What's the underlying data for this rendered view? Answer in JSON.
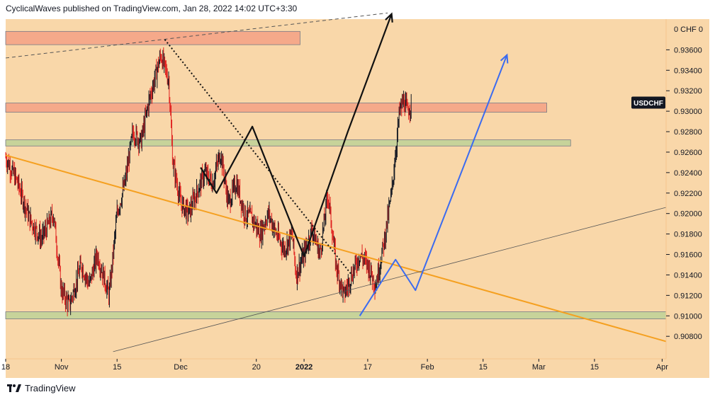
{
  "header": {
    "publisher_text": "CyclicalWaves published on TradingView.com, Jan 28, 2022 14:02 UTC+3:30"
  },
  "footer": {
    "brand": "TradingView",
    "logo_icon": "tradingview-logo-icon"
  },
  "colors": {
    "background": "#f9d7a9",
    "candle_up": "#131722",
    "candle_down": "#e0201e",
    "resistance_zone": "#f5a98a",
    "support_zone": "#c7d39a",
    "trendline_orange": "#f5a020",
    "projection_blue": "#3b6bf0",
    "pattern_black": "#111111",
    "price_badge": "#131722"
  },
  "chart_data": {
    "type": "candlestick",
    "symbol": "USDCHF",
    "price_scale_header": "0 CHF 0",
    "y_tick_labels": [
      "0.93600",
      "0.93400",
      "0.93200",
      "0.93000",
      "0.92800",
      "0.92600",
      "0.92400",
      "0.92200",
      "0.92000",
      "0.91800",
      "0.91600",
      "0.91400",
      "0.91200",
      "0.91000",
      "0.90800"
    ],
    "y_ticks": [
      0.936,
      0.934,
      0.932,
      0.93,
      0.928,
      0.926,
      0.924,
      0.922,
      0.92,
      0.918,
      0.916,
      0.914,
      0.912,
      0.91,
      0.908
    ],
    "ylim": [
      0.9058,
      0.939
    ],
    "x_tick_labels": [
      "18",
      "Nov",
      "15",
      "Dec",
      "20",
      "2022",
      "17",
      "Feb",
      "15",
      "Mar",
      "15",
      "Apr"
    ],
    "x_tick_days": [
      17,
      31,
      45,
      61,
      80,
      92,
      108,
      123,
      137,
      151,
      165,
      182
    ],
    "x_tick_bold": [
      false,
      false,
      false,
      false,
      false,
      true,
      false,
      false,
      false,
      false,
      false,
      false
    ],
    "xlim_days": [
      17,
      183
    ],
    "x_day_origin": "2021-10-01",
    "price_path": [
      [
        17,
        0.9255
      ],
      [
        20,
        0.923
      ],
      [
        23,
        0.9195
      ],
      [
        26,
        0.9175
      ],
      [
        29,
        0.92
      ],
      [
        31,
        0.9125
      ],
      [
        33,
        0.911
      ],
      [
        36,
        0.915
      ],
      [
        38,
        0.913
      ],
      [
        40,
        0.916
      ],
      [
        43,
        0.912
      ],
      [
        45,
        0.92
      ],
      [
        47,
        0.923
      ],
      [
        49,
        0.928
      ],
      [
        51,
        0.927
      ],
      [
        53,
        0.931
      ],
      [
        55,
        0.934
      ],
      [
        56,
        0.9355
      ],
      [
        58,
        0.933
      ],
      [
        59,
        0.925
      ],
      [
        61,
        0.921
      ],
      [
        63,
        0.92
      ],
      [
        65,
        0.922
      ],
      [
        67,
        0.924
      ],
      [
        69,
        0.923
      ],
      [
        71,
        0.926
      ],
      [
        73,
        0.921
      ],
      [
        75,
        0.923
      ],
      [
        77,
        0.92
      ],
      [
        79,
        0.9195
      ],
      [
        81,
        0.918
      ],
      [
        83,
        0.92
      ],
      [
        85,
        0.918
      ],
      [
        87,
        0.9165
      ],
      [
        89,
        0.918
      ],
      [
        90,
        0.914
      ],
      [
        92,
        0.916
      ],
      [
        94,
        0.9185
      ],
      [
        96,
        0.916
      ],
      [
        98,
        0.922
      ],
      [
        100,
        0.915
      ],
      [
        102,
        0.912
      ],
      [
        104,
        0.914
      ],
      [
        106,
        0.916
      ],
      [
        108,
        0.915
      ],
      [
        110,
        0.913
      ],
      [
        112,
        0.917
      ],
      [
        114,
        0.922
      ],
      [
        115,
        0.926
      ],
      [
        116,
        0.93
      ],
      [
        117,
        0.931
      ],
      [
        118,
        0.93
      ],
      [
        119,
        0.9308
      ]
    ],
    "zones": [
      {
        "label": "resistance-top",
        "start_day": 17,
        "end_day": 91,
        "low": 0.9365,
        "high": 0.9378
      },
      {
        "label": "resistance",
        "start_day": 17,
        "end_day": 153,
        "low": 0.9299,
        "high": 0.9308
      },
      {
        "label": "support-mid",
        "start_day": 17,
        "end_day": 159,
        "low": 0.9266,
        "high": 0.9272
      },
      {
        "label": "support-low",
        "start_day": 17,
        "end_day": 183,
        "low": 0.9097,
        "high": 0.9104
      }
    ],
    "lines": [
      {
        "label": "orange-trendline",
        "style": "solid",
        "points": [
          [
            17,
            0.9257
          ],
          [
            183,
            0.9075
          ]
        ]
      },
      {
        "label": "upper-dashed",
        "style": "dashed",
        "points": [
          [
            17,
            0.9352
          ],
          [
            113,
            0.9396
          ]
        ]
      },
      {
        "label": "dotted-downtrend",
        "style": "dotted",
        "points": [
          [
            57,
            0.937
          ],
          [
            104,
            0.914
          ]
        ]
      },
      {
        "label": "rising-thin",
        "style": "solid",
        "points": [
          [
            44,
            0.9065
          ],
          [
            183,
            0.9206
          ]
        ]
      },
      {
        "label": "head-shoulders-pattern",
        "style": "solid",
        "points": [
          [
            66,
            0.9245
          ],
          [
            70,
            0.922
          ],
          [
            79,
            0.9285
          ],
          [
            92,
            0.9158
          ],
          [
            103,
            0.928
          ],
          [
            114,
            0.9395
          ]
        ]
      },
      {
        "label": "blue-projection",
        "style": "solid",
        "points": [
          [
            106,
            0.91
          ],
          [
            115,
            0.9155
          ],
          [
            120,
            0.9125
          ],
          [
            143,
            0.9355
          ]
        ]
      }
    ],
    "last_price": 0.9308
  }
}
